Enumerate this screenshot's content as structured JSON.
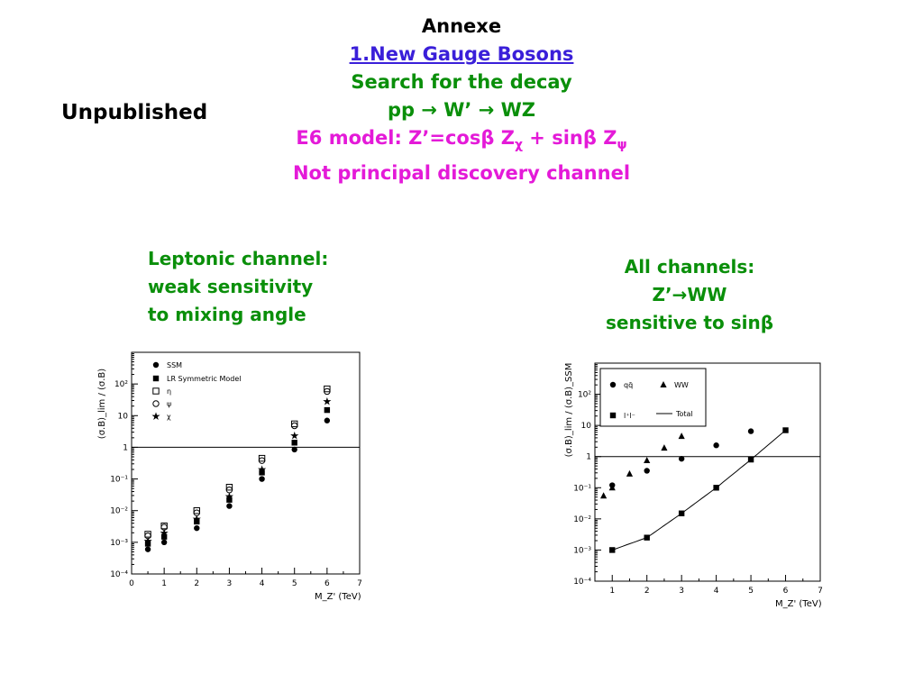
{
  "header": {
    "title": "Annexe",
    "subtitle_link": "1.New Gauge Bosons",
    "line3": "Search for the decay",
    "line4": "pp → W’ → WZ",
    "line5_prefix": "E6 model: Z’=cos",
    "line5_beta1": "β",
    "line5_z1": " Z",
    "line5_sub1": "χ",
    "line5_mid": " + sin",
    "line5_beta2": "β",
    "line5_z2": " Z",
    "line5_sub2": "ψ",
    "line6": "Not principal discovery channel"
  },
  "side_label": "Unpublished",
  "left_caption": [
    "Leptonic channel:",
    "weak sensitivity",
    "to mixing angle"
  ],
  "right_caption": [
    "All channels:",
    "Z’→WW",
    "sensitive to sinβ"
  ],
  "colors": {
    "green": "#0a8f0a",
    "magenta": "#e41ad8",
    "link": "#3a1fd9",
    "ink": "#000000"
  },
  "chart_data": [
    {
      "type": "scatter",
      "xlabel": "M_Z' (TeV)",
      "ylabel": "(σ.B)_lim / (σ.B)",
      "xlim": [
        0,
        7
      ],
      "ylim_log10": [
        -4,
        3
      ],
      "x_ticks": [
        "0",
        "1",
        "2",
        "3",
        "4",
        "5",
        "6",
        "7"
      ],
      "y_ticks": [
        "10⁻⁴",
        "10⁻³",
        "10⁻²",
        "10⁻¹",
        "1",
        "10",
        "10²"
      ],
      "reference_line_y": 1,
      "legend_position": "top-left",
      "series": [
        {
          "name": "SSM",
          "marker": "filled-circle",
          "x": [
            0.5,
            1,
            2,
            3,
            4,
            5,
            6
          ],
          "y": [
            0.0006,
            0.001,
            0.0028,
            0.014,
            0.1,
            0.85,
            7
          ]
        },
        {
          "name": "LR Symmetric Model",
          "marker": "filled-square",
          "x": [
            0.5,
            1,
            2,
            3,
            4,
            5,
            6
          ],
          "y": [
            0.0009,
            0.0015,
            0.0045,
            0.022,
            0.16,
            1.4,
            15
          ]
        },
        {
          "name": "η",
          "marker": "open-square",
          "x": [
            0.5,
            1,
            2,
            3,
            4,
            5,
            6
          ],
          "y": [
            0.0018,
            0.0033,
            0.01,
            0.055,
            0.45,
            5.5,
            70
          ]
        },
        {
          "name": "ψ",
          "marker": "open-circle",
          "x": [
            0.5,
            1,
            2,
            3,
            4,
            5,
            6
          ],
          "y": [
            0.0016,
            0.003,
            0.0085,
            0.045,
            0.38,
            4.8,
            58
          ]
        },
        {
          "name": "χ",
          "marker": "star",
          "x": [
            0.5,
            1,
            2,
            3,
            4,
            5,
            6
          ],
          "y": [
            0.0011,
            0.002,
            0.0055,
            0.028,
            0.2,
            2.3,
            28
          ]
        }
      ]
    },
    {
      "type": "scatter",
      "xlabel": "M_Z' (TeV)",
      "ylabel": "(σ.B)_lim / (σ.B)_SSM",
      "xlim": [
        0.5,
        7
      ],
      "ylim_log10": [
        -4,
        3
      ],
      "x_ticks": [
        "1",
        "2",
        "3",
        "4",
        "5",
        "6",
        "7"
      ],
      "y_ticks": [
        "10⁻⁴",
        "10⁻³",
        "10⁻²",
        "10⁻¹",
        "1",
        "10",
        "10²"
      ],
      "reference_line_y": 1,
      "legend_position": "top-left",
      "series": [
        {
          "name": "qq̄",
          "marker": "filled-circle",
          "x": [
            1,
            2,
            3,
            4,
            5
          ],
          "y": [
            0.12,
            0.35,
            0.85,
            2.3,
            6.5
          ]
        },
        {
          "name": "WW",
          "marker": "filled-triangle",
          "x": [
            0.75,
            1,
            1.5,
            2,
            2.5,
            3
          ],
          "y": [
            0.055,
            0.1,
            0.28,
            0.75,
            1.9,
            4.5
          ]
        },
        {
          "name": "l⁺l⁻",
          "marker": "filled-square",
          "x": [
            1,
            2,
            3,
            4,
            5,
            6
          ],
          "y": [
            0.001,
            0.0025,
            0.015,
            0.1,
            0.8,
            7
          ]
        },
        {
          "name": "Total",
          "marker": "line",
          "x": [
            1,
            2,
            3,
            4,
            5,
            6
          ],
          "y": [
            0.001,
            0.0025,
            0.015,
            0.1,
            0.8,
            7
          ]
        }
      ]
    }
  ]
}
